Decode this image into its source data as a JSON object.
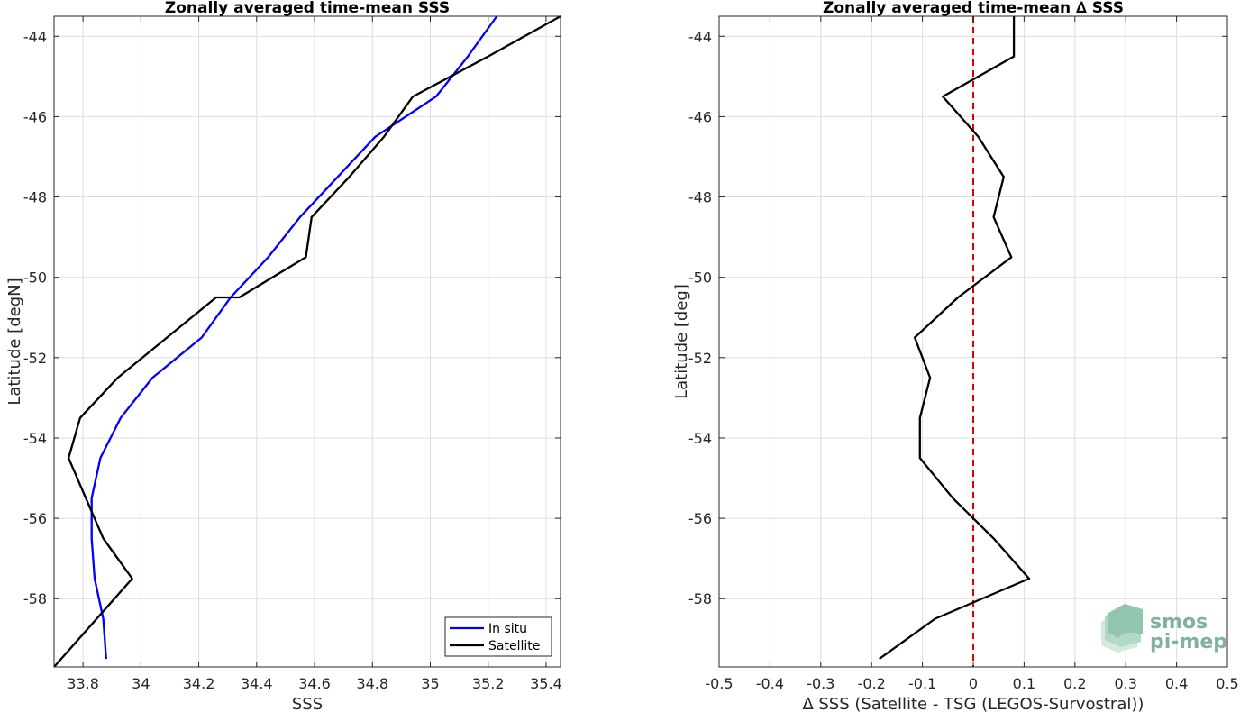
{
  "chart_data": [
    {
      "type": "line",
      "title": "Zonally averaged time-mean SSS",
      "xlabel": "SSS",
      "ylabel": "Latitude [degN]",
      "xlim": [
        33.7,
        35.45
      ],
      "ylim": [
        -59.7,
        -43.5
      ],
      "xticks": [
        33.8,
        34,
        34.2,
        34.4,
        34.6,
        34.8,
        35,
        35.2,
        35.4
      ],
      "xtick_labels": [
        "33.8",
        "34",
        "34.2",
        "34.4",
        "34.6",
        "34.8",
        "35",
        "35.2",
        "35.4"
      ],
      "yticks": [
        -58,
        -56,
        -54,
        -52,
        -50,
        -48,
        -46,
        -44
      ],
      "ytick_labels": [
        "-58",
        "-56",
        "-54",
        "-52",
        "-50",
        "-48",
        "-46",
        "-44"
      ],
      "grid": true,
      "legend_position": "bottom-right",
      "series": [
        {
          "name": "In situ",
          "color": "#0000ff",
          "points": [
            [
              35.23,
              -43.5
            ],
            [
              35.13,
              -44.5
            ],
            [
              35.02,
              -45.5
            ],
            [
              34.81,
              -46.5
            ],
            [
              34.68,
              -47.5
            ],
            [
              34.55,
              -48.5
            ],
            [
              34.44,
              -49.5
            ],
            [
              34.31,
              -50.5
            ],
            [
              34.21,
              -51.5
            ],
            [
              34.04,
              -52.5
            ],
            [
              33.93,
              -53.5
            ],
            [
              33.86,
              -54.5
            ],
            [
              33.83,
              -55.5
            ],
            [
              33.83,
              -56.5
            ],
            [
              33.84,
              -57.5
            ],
            [
              33.87,
              -58.5
            ],
            [
              33.88,
              -59.5
            ]
          ]
        },
        {
          "name": "Satellite",
          "color": "#000000",
          "points": [
            [
              35.45,
              -43.5
            ],
            [
              35.2,
              -44.5
            ],
            [
              34.94,
              -45.5
            ],
            [
              34.84,
              -46.5
            ],
            [
              34.72,
              -47.5
            ],
            [
              34.59,
              -48.5
            ],
            [
              34.57,
              -49.5
            ],
            [
              34.34,
              -50.5
            ],
            [
              34.26,
              -50.5
            ],
            [
              33.92,
              -52.5
            ],
            [
              33.79,
              -53.5
            ],
            [
              33.75,
              -54.5
            ],
            [
              33.81,
              -55.5
            ],
            [
              33.87,
              -56.5
            ],
            [
              33.97,
              -57.5
            ],
            [
              33.7,
              -59.7
            ]
          ]
        }
      ]
    },
    {
      "type": "line",
      "title": "Zonally averaged time-mean ∆ SSS",
      "xlabel": "∆ SSS (Satellite - TSG (LEGOS-Survostral))",
      "ylabel": "Latitude [deg]",
      "xlim": [
        -0.5,
        0.5
      ],
      "ylim": [
        -59.7,
        -43.5
      ],
      "xticks": [
        -0.5,
        -0.4,
        -0.3,
        -0.2,
        -0.1,
        0,
        0.1,
        0.2,
        0.3,
        0.4,
        0.5
      ],
      "xtick_labels": [
        "-0.5",
        "-0.4",
        "-0.3",
        "-0.2",
        "-0.1",
        "0",
        "0.1",
        "0.2",
        "0.3",
        "0.4",
        "0.5"
      ],
      "yticks": [
        -58,
        -56,
        -54,
        -52,
        -50,
        -48,
        -46,
        -44
      ],
      "ytick_labels": [
        "-58",
        "-56",
        "-54",
        "-52",
        "-50",
        "-48",
        "-46",
        "-44"
      ],
      "grid": true,
      "reference_line": {
        "x": 0,
        "color": "#dd0000",
        "style": "dashed"
      },
      "series": [
        {
          "color": "#000000",
          "points": [
            [
              0.08,
              -43.5
            ],
            [
              0.08,
              -44.5
            ],
            [
              -0.06,
              -45.5
            ],
            [
              0.01,
              -46.5
            ],
            [
              0.06,
              -47.5
            ],
            [
              0.04,
              -48.5
            ],
            [
              0.075,
              -49.5
            ],
            [
              -0.03,
              -50.5
            ],
            [
              -0.115,
              -51.5
            ],
            [
              -0.085,
              -52.5
            ],
            [
              -0.105,
              -53.5
            ],
            [
              -0.105,
              -54.5
            ],
            [
              -0.04,
              -55.5
            ],
            [
              0.04,
              -56.5
            ],
            [
              0.11,
              -57.5
            ],
            [
              -0.075,
              -58.5
            ],
            [
              -0.185,
              -59.5
            ]
          ]
        }
      ]
    }
  ],
  "watermark": {
    "line1": "smos",
    "line2": "pi-mep"
  }
}
